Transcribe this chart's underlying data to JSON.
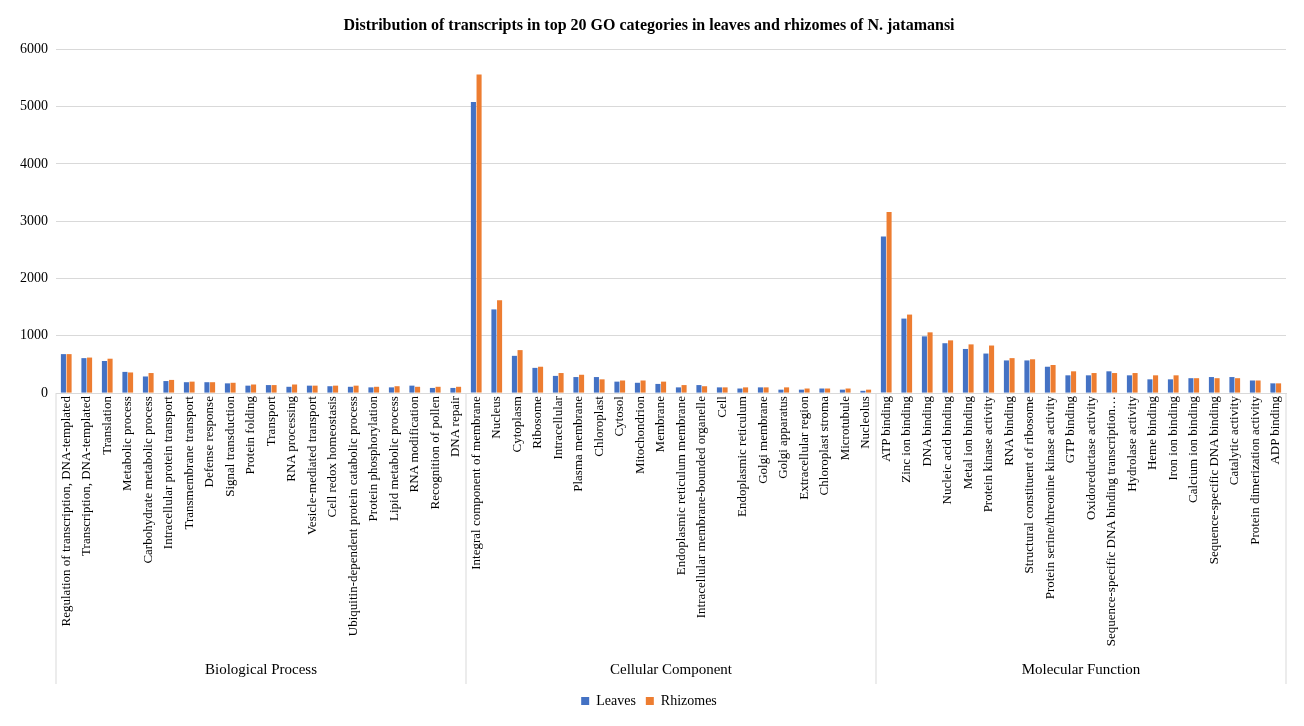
{
  "chart_data": {
    "type": "bar",
    "title": "Distribution of transcripts in top 20 GO categories in leaves and rhizomes of N. jatamansi",
    "categories": [
      "Regulation of transcription, DNA-templated",
      "Transcription, DNA-templated",
      "Translation",
      "Metabolic process",
      "Carbohydrate metabolic process",
      "Intracellular protein transport",
      "Transmembrane transport",
      "Defense response",
      "Signal transduction",
      "Protein folding",
      "Transport",
      "RNA processing",
      "Vesicle-mediated transport",
      "Cell redox homeostasis",
      "Ubiquitin-dependent protein catabolic process",
      "Protein phosphorylation",
      "Lipid metabolic process",
      "RNA modification",
      "Recognition of pollen",
      "DNA repair",
      "Integral component of membrane",
      "Nucleus",
      "Cytoplasm",
      "Ribosome",
      "Intracellular",
      "Plasma membrane",
      "Chloroplast",
      "Cytosol",
      "Mitochondrion",
      "Membrane",
      "Endoplasmic reticulum membrane",
      "Intracellular membrane-bounded organelle",
      "Cell",
      "Endoplasmic reticulum",
      "Golgi membrane",
      "Golgi apparatus",
      "Extracellular region",
      "Chloroplast stroma",
      "Microtubule",
      "Nucleolus",
      "ATP binding",
      "Zinc ion binding",
      "DNA binding",
      "Nucleic acid binding",
      "Metal ion binding",
      "Protein kinase activity",
      "RNA binding",
      "Structural constituent of ribosome",
      "Protein serine/threonine kinase activity",
      "GTP binding",
      "Oxidoreductase activity",
      "Sequence-specific DNA binding transcription…",
      "Hydrolase activity",
      "Heme binding",
      "Iron ion binding",
      "Calcium ion binding",
      "Sequence-specific DNA binding",
      "Catalytic activity",
      "Protein dimerization activity",
      "ADP binding"
    ],
    "series": [
      {
        "name": "Leaves",
        "color": "#4472c4",
        "values": [
          680,
          610,
          560,
          370,
          290,
          210,
          190,
          190,
          170,
          130,
          140,
          110,
          130,
          120,
          110,
          100,
          100,
          130,
          90,
          90,
          5080,
          1460,
          650,
          440,
          300,
          280,
          280,
          200,
          180,
          160,
          100,
          140,
          100,
          80,
          100,
          60,
          60,
          80,
          60,
          40,
          2730,
          1300,
          990,
          870,
          770,
          690,
          570,
          570,
          460,
          310,
          310,
          380,
          310,
          240,
          240,
          260,
          280,
          280,
          220,
          170
        ]
      },
      {
        "name": "Rhizomes",
        "color": "#ed7d31",
        "values": [
          680,
          620,
          600,
          360,
          350,
          230,
          200,
          190,
          180,
          150,
          140,
          150,
          130,
          130,
          130,
          110,
          120,
          110,
          110,
          110,
          5560,
          1620,
          750,
          460,
          350,
          320,
          240,
          220,
          220,
          200,
          140,
          120,
          100,
          100,
          100,
          100,
          80,
          80,
          80,
          60,
          3160,
          1370,
          1060,
          920,
          850,
          830,
          610,
          590,
          490,
          380,
          350,
          350,
          350,
          310,
          310,
          260,
          260,
          260,
          220,
          170
        ]
      }
    ],
    "ylim": [
      0,
      6000
    ],
    "yticks": [
      0,
      1000,
      2000,
      3000,
      4000,
      5000,
      6000
    ],
    "grid": "y",
    "legend": "bottom",
    "annotations": [
      "Biological Process",
      "Cellular Component",
      "Molecular Function"
    ]
  }
}
